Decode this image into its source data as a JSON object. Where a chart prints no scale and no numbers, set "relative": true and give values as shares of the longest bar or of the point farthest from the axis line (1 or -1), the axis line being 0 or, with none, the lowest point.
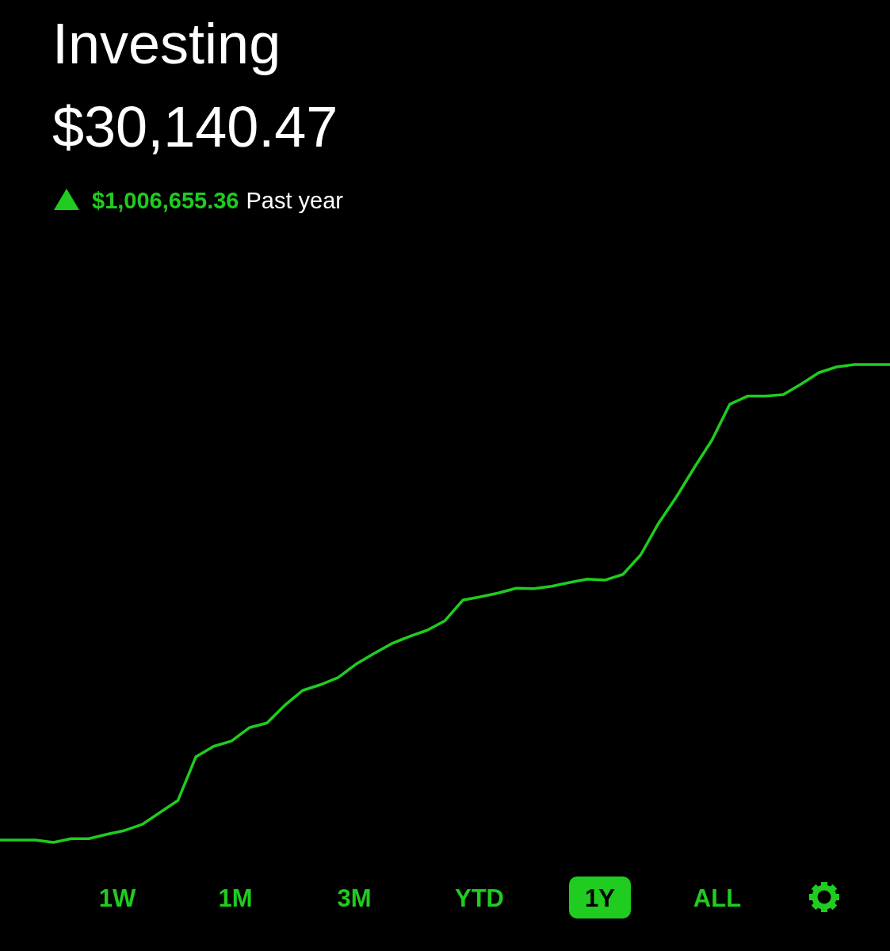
{
  "chart_data": {
    "type": "line",
    "title": "Investing",
    "subtitle": "$30,140.47",
    "relative": true,
    "annotations": [
      "$1,006,655.36",
      "Past year",
      "1W",
      "1M",
      "3M",
      "YTD",
      "1Y",
      "ALL"
    ],
    "categories": [
      null,
      null,
      null,
      null,
      null,
      null,
      null,
      null,
      null,
      null,
      null,
      null,
      null,
      null,
      null,
      null,
      null,
      null,
      null,
      null,
      null,
      null,
      null,
      null,
      null,
      null,
      null,
      null,
      null,
      null,
      null,
      null,
      null,
      null,
      null,
      null,
      null,
      null,
      null,
      null,
      null,
      null,
      null,
      null,
      null,
      null,
      null,
      null,
      null,
      null,
      null
    ],
    "series": [
      {
        "color": "#1fcc1f",
        "values": [
          0.005,
          0.005,
          0.005,
          0,
          0.008,
          0.008,
          0.017,
          0.025,
          0.038,
          0.063,
          0.088,
          0.179,
          0.201,
          0.212,
          0.24,
          0.25,
          0.287,
          0.318,
          0.33,
          0.345,
          0.373,
          0.395,
          0.416,
          0.431,
          0.444,
          0.464,
          0.507,
          0.514,
          0.522,
          0.532,
          0.531,
          0.536,
          0.544,
          0.551,
          0.549,
          0.561,
          0.602,
          0.668,
          0.723,
          0.784,
          0.842,
          0.917,
          0.934,
          0.934,
          0.937,
          0.959,
          0.983,
          0.995,
          1,
          1,
          1
        ]
      }
    ]
  }
}
